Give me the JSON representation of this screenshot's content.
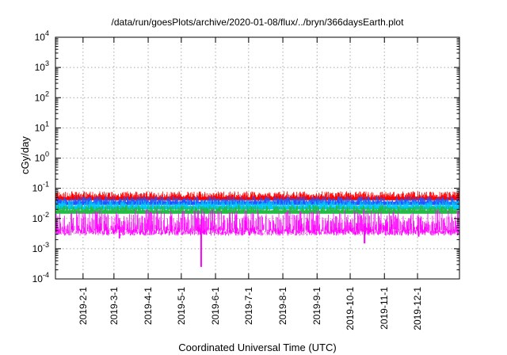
{
  "chart_data": {
    "type": "area",
    "title": "/data/run/goesPlots/archive/2020-01-08/flux/../bryn/366daysEarth.plot",
    "xlabel": "Coordinated Universal Time (UTC)",
    "ylabel": "cGy/day",
    "yscale": "log",
    "ylim": [
      0.0001,
      10000
    ],
    "xlim": [
      "2019-01-07",
      "2020-01-08"
    ],
    "grid": true,
    "legend": "none",
    "y_ticks": [
      {
        "value": 0.0001,
        "base": "10",
        "exp": "-4"
      },
      {
        "value": 0.001,
        "base": "10",
        "exp": "-3"
      },
      {
        "value": 0.01,
        "base": "10",
        "exp": "-2"
      },
      {
        "value": 0.1,
        "base": "10",
        "exp": "-1"
      },
      {
        "value": 1,
        "base": "10",
        "exp": "0"
      },
      {
        "value": 10,
        "base": "10",
        "exp": "1"
      },
      {
        "value": 100,
        "base": "10",
        "exp": "2"
      },
      {
        "value": 1000,
        "base": "10",
        "exp": "3"
      },
      {
        "value": 10000,
        "base": "10",
        "exp": "4"
      }
    ],
    "x_ticks": [
      {
        "label": "2019-2-1",
        "date": "2019-02-01"
      },
      {
        "label": "2019-3-1",
        "date": "2019-03-01"
      },
      {
        "label": "2019-4-1",
        "date": "2019-04-01"
      },
      {
        "label": "2019-5-1",
        "date": "2019-05-01"
      },
      {
        "label": "2019-6-1",
        "date": "2019-06-01"
      },
      {
        "label": "2019-7-1",
        "date": "2019-07-01"
      },
      {
        "label": "2019-8-1",
        "date": "2019-08-01"
      },
      {
        "label": "2019-9-1",
        "date": "2019-09-01"
      },
      {
        "label": "2019-10-1",
        "date": "2019-10-01"
      },
      {
        "label": "2019-11-1",
        "date": "2019-11-01"
      },
      {
        "label": "2019-12-1",
        "date": "2019-12-01"
      }
    ],
    "series": [
      {
        "color": "#ff0000",
        "low": 0.05,
        "high": 0.08
      },
      {
        "color": "#2255ff",
        "low": 0.035,
        "high": 0.055
      },
      {
        "color": "#00c8ff",
        "low": 0.025,
        "high": 0.04
      },
      {
        "color": "#22bb44",
        "low": 0.018,
        "high": 0.028
      },
      {
        "color": "#ff00ff",
        "low": 0.003,
        "high": 0.02
      }
    ],
    "dips": [
      {
        "date": "2019-03-06",
        "value": 0.0022
      },
      {
        "date": "2019-05-19",
        "value": 0.00025
      },
      {
        "date": "2019-10-14",
        "value": 0.0015
      },
      {
        "date": "2019-12-02",
        "value": 0.0025
      }
    ]
  }
}
